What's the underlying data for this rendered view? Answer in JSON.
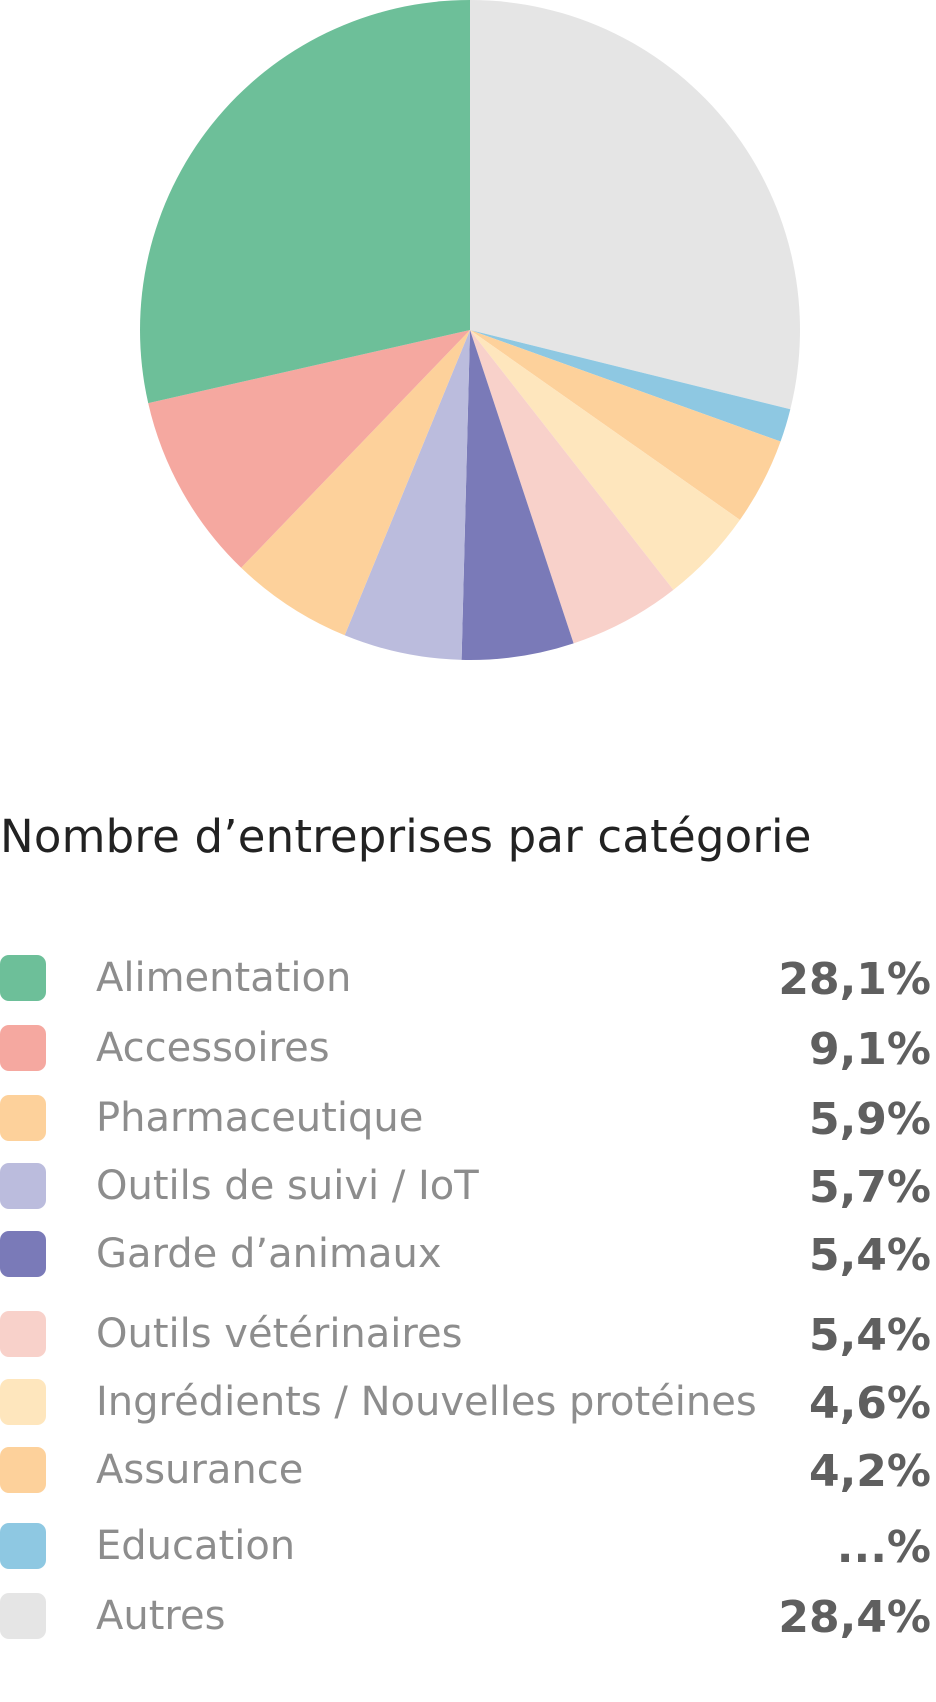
{
  "chart_data": {
    "type": "pie",
    "title": "Nombre d’entreprises par catégorie",
    "slices": [
      {
        "label": "Alimentation",
        "value": 28.1,
        "display": "28,1%",
        "color": "#6dbf99"
      },
      {
        "label": "Accessoires",
        "value": 9.1,
        "display": "9,1%",
        "color": "#f5a8a0"
      },
      {
        "label": "Pharmaceutique",
        "value": 5.9,
        "display": "5,9%",
        "color": "#fdd19b"
      },
      {
        "label": "Outils de suivi / IoT",
        "value": 5.7,
        "display": "5,7%",
        "color": "#bbbcdd"
      },
      {
        "label": "Garde d’animaux",
        "value": 5.4,
        "display": "5,4%",
        "color": "#7a7ab8"
      },
      {
        "label": "Outils vétérinaires",
        "value": 5.4,
        "display": "5,4%",
        "color": "#f8d1ca"
      },
      {
        "label": "Ingrédients / Nouvelles protéines",
        "value": 4.6,
        "display": "4,6%",
        "color": "#fee6bd"
      },
      {
        "label": "Assurance",
        "value": 4.2,
        "display": "4,2%",
        "color": "#fdd19b"
      },
      {
        "label": "Education",
        "value": 1.6,
        "display": "...%",
        "color": "#8ec8e2"
      },
      {
        "label": "Autres",
        "value": 28.4,
        "display": "28,4%",
        "color": "#e5e5e5"
      }
    ],
    "direction": "clockwise",
    "start": "Autres at top (12 o'clock)",
    "legend_placement": "below"
  }
}
